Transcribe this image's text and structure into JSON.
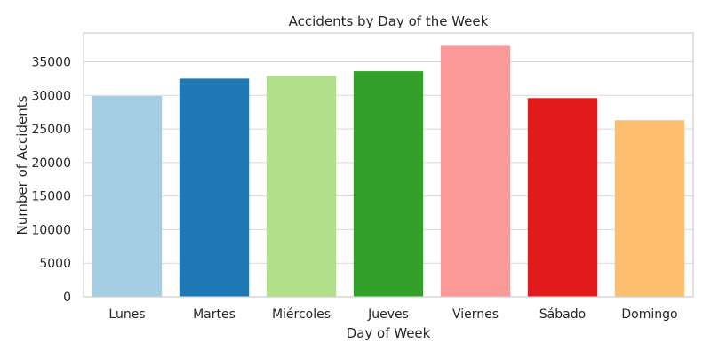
{
  "chart_data": {
    "type": "bar",
    "title": "Accidents by Day of the Week",
    "xlabel": "Day of Week",
    "ylabel": "Number of Accidents",
    "categories": [
      "Lunes",
      "Martes",
      "Miércoles",
      "Jueves",
      "Viernes",
      "Sábado",
      "Domingo"
    ],
    "values": [
      29900,
      32500,
      32900,
      33600,
      37400,
      29600,
      26300
    ],
    "colors": [
      "#a6cee3",
      "#1f78b4",
      "#b2df8a",
      "#33a02c",
      "#fb9a99",
      "#e31a1c",
      "#fdbf6f"
    ],
    "ylim": [
      0,
      39300
    ],
    "yticks": [
      0,
      5000,
      10000,
      15000,
      20000,
      25000,
      30000,
      35000
    ],
    "ytick_labels": [
      "0",
      "5000",
      "10000",
      "15000",
      "20000",
      "25000",
      "30000",
      "35000"
    ],
    "grid": true,
    "grid_axis": "y",
    "legend": "none"
  }
}
